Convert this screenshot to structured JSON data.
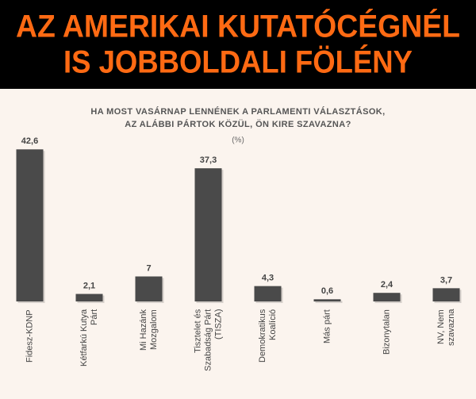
{
  "header": {
    "title_lines": [
      "AZ AMERIKAI KUTATÓCÉGNÉL",
      "IS JOBBOLDALI FÖLÉNY"
    ]
  },
  "chart_data": {
    "type": "bar",
    "title_lines": [
      "HA MOST VASÁRNAP LENNÉNEK A PARLAMENTI VÁLASZTÁSOK,",
      "AZ ALÁBBI PÁRTOK KÖZÜL, ÖN KIRE SZAVAZNA?"
    ],
    "subtitle": "(%)",
    "categories": [
      "Fidesz-KDNP",
      "Kétfarkú Kutya Párt",
      "Mi Hazánk Mozgalom",
      "Tisztelet és Szabadság Párt (TISZA)",
      "Demokratikus Koalíció",
      "Más párt",
      "Bizonytalan",
      "NV, Nem szavazna"
    ],
    "values": [
      42.6,
      2.1,
      7,
      37.3,
      4.3,
      0.6,
      2.4,
      3.7
    ],
    "value_labels": [
      "42,6",
      "2,1",
      "7",
      "37,3",
      "4,3",
      "0,6",
      "2,4",
      "3,7"
    ],
    "color": "#4a4a4a"
  }
}
